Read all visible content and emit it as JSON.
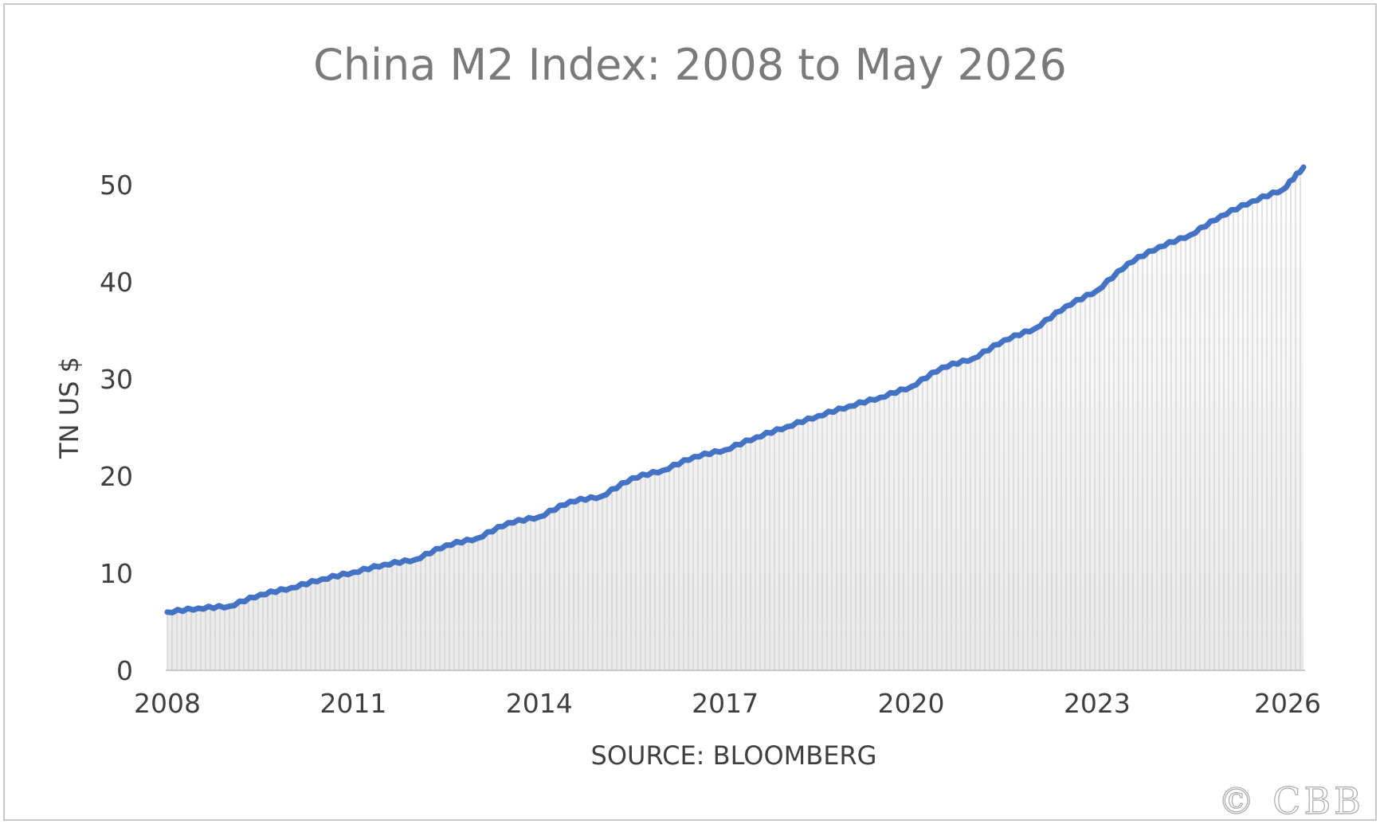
{
  "chart_data": {
    "type": "line",
    "title": "China M2 Index: 2008 to May 2026",
    "xlabel": "SOURCE: BLOOMBERG",
    "ylabel": "TN US $",
    "x_ticks": [
      "2008",
      "2011",
      "2014",
      "2017",
      "2020",
      "2023",
      "2026"
    ],
    "y_ticks": [
      "0",
      "10",
      "20",
      "30",
      "40",
      "50"
    ],
    "ylim": [
      0,
      50
    ],
    "xlim": [
      2008.0,
      2026.33
    ],
    "grid": false,
    "legend": "none",
    "fill": "gradient area with vertical hatching under the line",
    "series": [
      {
        "x": [
          2008.0,
          2008.5,
          2009.0,
          2009.5,
          2010.0,
          2010.5,
          2011.0,
          2011.5,
          2012.0,
          2012.5,
          2013.0,
          2013.5,
          2014.0,
          2014.5,
          2015.0,
          2015.5,
          2016.0,
          2016.5,
          2017.0,
          2017.5,
          2018.0,
          2018.5,
          2019.0,
          2019.5,
          2020.0,
          2020.5,
          2021.0,
          2021.5,
          2022.0,
          2022.5,
          2023.0,
          2023.5,
          2024.0,
          2024.5,
          2025.0,
          2025.5,
          2026.0,
          2026.33
        ],
        "values": [
          6.0,
          6.4,
          6.6,
          7.8,
          8.5,
          9.4,
          10.1,
          10.9,
          11.4,
          12.9,
          13.6,
          15.2,
          15.8,
          17.4,
          17.9,
          19.8,
          20.6,
          22.0,
          22.7,
          24.0,
          25.1,
          26.2,
          27.2,
          28.1,
          29.2,
          31.2,
          32.1,
          34.0,
          35.2,
          37.5,
          39.1,
          41.9,
          43.6,
          44.8,
          46.8,
          48.3,
          49.5,
          51.8
        ]
      }
    ],
    "colors": {
      "line": "#4472c4",
      "hatch": "#c8c8c8",
      "axis": "#c8c8c8",
      "text": "#3f3f3f",
      "title": "#7a7a7a"
    }
  },
  "watermark": "© CBB"
}
